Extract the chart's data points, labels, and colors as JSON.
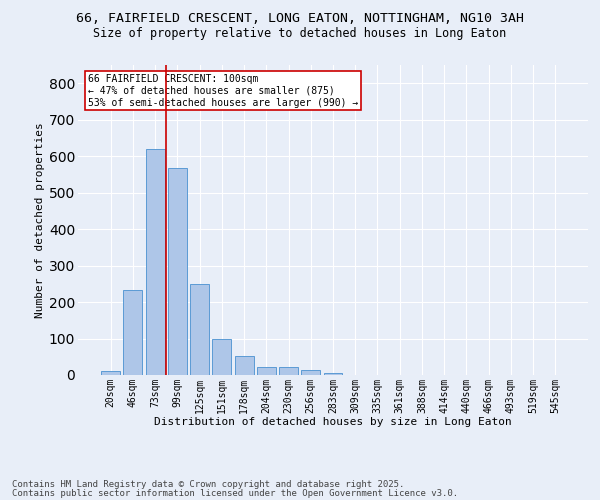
{
  "title": "66, FAIRFIELD CRESCENT, LONG EATON, NOTTINGHAM, NG10 3AH",
  "subtitle": "Size of property relative to detached houses in Long Eaton",
  "xlabel": "Distribution of detached houses by size in Long Eaton",
  "ylabel": "Number of detached properties",
  "categories": [
    "20sqm",
    "46sqm",
    "73sqm",
    "99sqm",
    "125sqm",
    "151sqm",
    "178sqm",
    "204sqm",
    "230sqm",
    "256sqm",
    "283sqm",
    "309sqm",
    "335sqm",
    "361sqm",
    "388sqm",
    "414sqm",
    "440sqm",
    "466sqm",
    "493sqm",
    "519sqm",
    "545sqm"
  ],
  "values": [
    10,
    232,
    619,
    568,
    250,
    100,
    52,
    22,
    22,
    15,
    5,
    0,
    0,
    0,
    0,
    0,
    0,
    0,
    0,
    0,
    0
  ],
  "bar_color": "#aec6e8",
  "bar_edge_color": "#5b9bd5",
  "bg_color": "#e8eef8",
  "grid_color": "#ffffff",
  "vline_x": 2.5,
  "annotation_text": "66 FAIRFIELD CRESCENT: 100sqm\n← 47% of detached houses are smaller (875)\n53% of semi-detached houses are larger (990) →",
  "annotation_box_color": "#ffffff",
  "annotation_box_edge": "#cc0000",
  "vline_color": "#cc0000",
  "footer_line1": "Contains HM Land Registry data © Crown copyright and database right 2025.",
  "footer_line2": "Contains public sector information licensed under the Open Government Licence v3.0.",
  "ylim": [
    0,
    850
  ],
  "yticks": [
    0,
    100,
    200,
    300,
    400,
    500,
    600,
    700,
    800
  ],
  "title_fontsize": 9.5,
  "subtitle_fontsize": 8.5,
  "axis_label_fontsize": 8,
  "tick_fontsize": 7,
  "annotation_fontsize": 7,
  "footer_fontsize": 6.5
}
